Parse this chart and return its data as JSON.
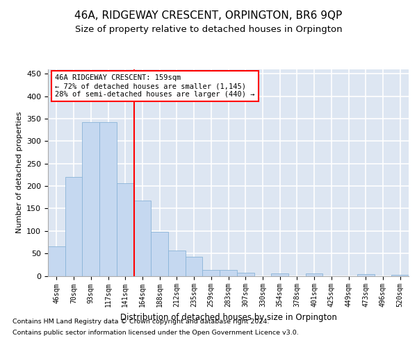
{
  "title": "46A, RIDGEWAY CRESCENT, ORPINGTON, BR6 9QP",
  "subtitle": "Size of property relative to detached houses in Orpington",
  "xlabel": "Distribution of detached houses by size in Orpington",
  "ylabel": "Number of detached properties",
  "bar_labels": [
    "46sqm",
    "70sqm",
    "93sqm",
    "117sqm",
    "141sqm",
    "164sqm",
    "188sqm",
    "212sqm",
    "235sqm",
    "259sqm",
    "283sqm",
    "307sqm",
    "330sqm",
    "354sqm",
    "378sqm",
    "401sqm",
    "425sqm",
    "449sqm",
    "473sqm",
    "496sqm",
    "520sqm"
  ],
  "bar_values": [
    65,
    220,
    343,
    343,
    207,
    167,
    98,
    56,
    43,
    13,
    13,
    7,
    0,
    6,
    0,
    5,
    0,
    0,
    4,
    0,
    3
  ],
  "bar_color": "#c5d8f0",
  "bar_edge_color": "#8ab4d8",
  "vline_x": 4.5,
  "vline_color": "red",
  "annotation_text": "46A RIDGEWAY CRESCENT: 159sqm\n← 72% of detached houses are smaller (1,145)\n28% of semi-detached houses are larger (440) →",
  "annotation_box_color": "white",
  "annotation_box_edge": "red",
  "ylim": [
    0,
    460
  ],
  "yticks": [
    0,
    50,
    100,
    150,
    200,
    250,
    300,
    350,
    400,
    450
  ],
  "bg_color": "#dde6f2",
  "grid_color": "white",
  "footer_line1": "Contains HM Land Registry data © Crown copyright and database right 2024.",
  "footer_line2": "Contains public sector information licensed under the Open Government Licence v3.0.",
  "title_fontsize": 11,
  "subtitle_fontsize": 9.5
}
